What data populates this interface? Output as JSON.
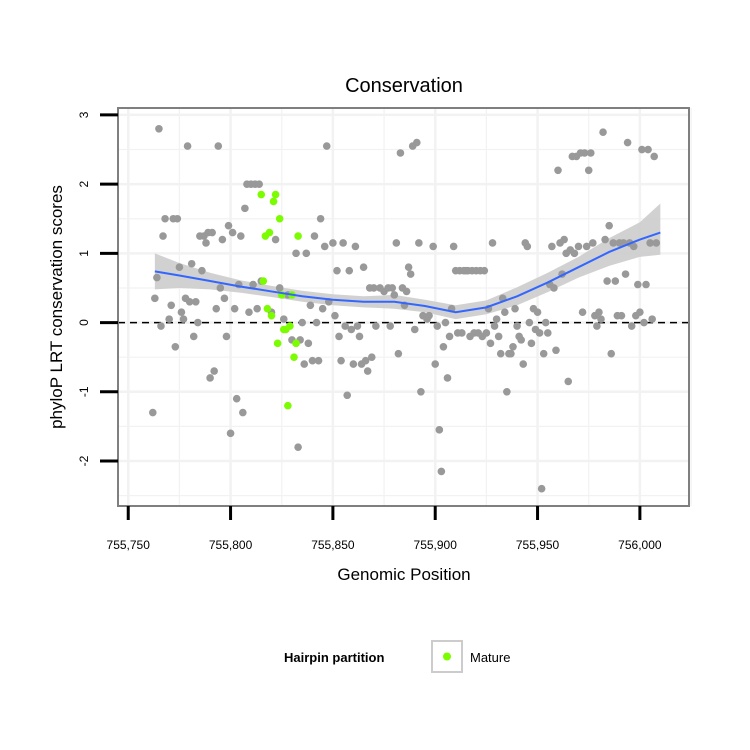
{
  "chart_data": {
    "type": "scatter",
    "title": "Conservation",
    "xlabel": "Genomic Position",
    "ylabel": "phyloP LRT conservation scores",
    "xlim": [
      755745,
      756024
    ],
    "ylim": [
      -2.65,
      3.1
    ],
    "x_ticks": [
      755750,
      755800,
      755850,
      755900,
      755950,
      756000
    ],
    "x_tick_labels": [
      "755,750",
      "755,800",
      "755,850",
      "755,900",
      "755,950",
      "756,000"
    ],
    "y_ticks": [
      -2,
      -1,
      0,
      1,
      2,
      3
    ],
    "y_tick_labels": [
      "-2",
      "-1",
      "0",
      "1",
      "2",
      "3"
    ],
    "reference_line_y": 0,
    "grid": true,
    "legend": {
      "title": "Hairpin partition",
      "placement": "bottom",
      "entries": [
        "Mature"
      ]
    },
    "colors": {
      "other": "#999999",
      "mature": "#7cfc00",
      "smooth": "#3366ff",
      "ribbon": "#cccccc",
      "panel_border": "#7f7f7f",
      "grid": "#f2f2f2"
    },
    "series": [
      {
        "name": "",
        "color": "#999999",
        "points": [
          [
            755762,
            -1.3
          ],
          [
            755763,
            0.35
          ],
          [
            755764,
            0.65
          ],
          [
            755765,
            2.8
          ],
          [
            755766,
            -0.05
          ],
          [
            755767,
            1.25
          ],
          [
            755768,
            1.5
          ],
          [
            755770,
            0.05
          ],
          [
            755771,
            0.25
          ],
          [
            755772,
            1.5
          ],
          [
            755773,
            -0.35
          ],
          [
            755774,
            1.5
          ],
          [
            755775,
            0.8
          ],
          [
            755776,
            0.15
          ],
          [
            755777,
            0.05
          ],
          [
            755778,
            0.35
          ],
          [
            755779,
            2.55
          ],
          [
            755780,
            0.3
          ],
          [
            755781,
            0.85
          ],
          [
            755782,
            -0.2
          ],
          [
            755783,
            0.3
          ],
          [
            755784,
            0.0
          ],
          [
            755785,
            1.25
          ],
          [
            755786,
            0.75
          ],
          [
            755787,
            1.25
          ],
          [
            755788,
            1.15
          ],
          [
            755789,
            1.3
          ],
          [
            755790,
            -0.8
          ],
          [
            755791,
            1.3
          ],
          [
            755792,
            -0.7
          ],
          [
            755793,
            0.2
          ],
          [
            755794,
            2.55
          ],
          [
            755795,
            0.5
          ],
          [
            755796,
            1.2
          ],
          [
            755797,
            0.35
          ],
          [
            755798,
            -0.2
          ],
          [
            755799,
            1.4
          ],
          [
            755800,
            -1.6
          ],
          [
            755801,
            1.3
          ],
          [
            755802,
            0.2
          ],
          [
            755803,
            -1.1
          ],
          [
            755804,
            0.55
          ],
          [
            755805,
            1.25
          ],
          [
            755806,
            -1.3
          ],
          [
            755807,
            1.65
          ],
          [
            755808,
            2.0
          ],
          [
            755809,
            0.15
          ],
          [
            755810,
            2.0
          ],
          [
            755811,
            0.55
          ],
          [
            755812,
            2.0
          ],
          [
            755813,
            0.2
          ],
          [
            755814,
            2.0
          ],
          [
            755815,
            0.6
          ],
          [
            755820,
            0.15
          ],
          [
            755822,
            1.2
          ],
          [
            755824,
            0.5
          ],
          [
            755826,
            0.05
          ],
          [
            755828,
            0.4
          ],
          [
            755830,
            -0.25
          ],
          [
            755832,
            1.0
          ],
          [
            755833,
            -1.8
          ],
          [
            755834,
            -0.25
          ],
          [
            755835,
            0.0
          ],
          [
            755836,
            -0.6
          ],
          [
            755837,
            1.0
          ],
          [
            755838,
            -0.3
          ],
          [
            755839,
            0.25
          ],
          [
            755840,
            -0.55
          ],
          [
            755841,
            1.25
          ],
          [
            755842,
            0.0
          ],
          [
            755843,
            -0.55
          ],
          [
            755844,
            1.5
          ],
          [
            755845,
            0.2
          ],
          [
            755846,
            1.1
          ],
          [
            755847,
            2.55
          ],
          [
            755848,
            0.3
          ],
          [
            755850,
            1.15
          ],
          [
            755851,
            0.1
          ],
          [
            755852,
            0.75
          ],
          [
            755853,
            -0.2
          ],
          [
            755854,
            -0.55
          ],
          [
            755855,
            1.15
          ],
          [
            755856,
            -0.05
          ],
          [
            755857,
            -1.05
          ],
          [
            755858,
            0.75
          ],
          [
            755859,
            -0.1
          ],
          [
            755860,
            -0.6
          ],
          [
            755861,
            1.1
          ],
          [
            755862,
            -0.05
          ],
          [
            755863,
            -0.2
          ],
          [
            755864,
            -0.6
          ],
          [
            755865,
            0.8
          ],
          [
            755866,
            -0.55
          ],
          [
            755867,
            -0.7
          ],
          [
            755868,
            0.5
          ],
          [
            755869,
            -0.5
          ],
          [
            755870,
            0.5
          ],
          [
            755871,
            -0.05
          ],
          [
            755873,
            0.5
          ],
          [
            755875,
            0.45
          ],
          [
            755877,
            0.5
          ],
          [
            755878,
            -0.05
          ],
          [
            755879,
            0.5
          ],
          [
            755880,
            0.4
          ],
          [
            755881,
            1.15
          ],
          [
            755882,
            -0.45
          ],
          [
            755883,
            2.45
          ],
          [
            755884,
            0.5
          ],
          [
            755885,
            0.25
          ],
          [
            755886,
            0.45
          ],
          [
            755887,
            0.8
          ],
          [
            755888,
            0.7
          ],
          [
            755889,
            2.55
          ],
          [
            755890,
            -0.1
          ],
          [
            755891,
            2.6
          ],
          [
            755892,
            1.15
          ],
          [
            755893,
            -1.0
          ],
          [
            755894,
            0.1
          ],
          [
            755896,
            0.05
          ],
          [
            755897,
            0.1
          ],
          [
            755899,
            1.1
          ],
          [
            755900,
            -0.6
          ],
          [
            755901,
            -0.05
          ],
          [
            755902,
            -1.55
          ],
          [
            755903,
            -2.15
          ],
          [
            755904,
            -0.35
          ],
          [
            755905,
            0.0
          ],
          [
            755906,
            -0.8
          ],
          [
            755907,
            -0.2
          ],
          [
            755908,
            0.2
          ],
          [
            755909,
            1.1
          ],
          [
            755910,
            0.75
          ],
          [
            755911,
            -0.15
          ],
          [
            755912,
            0.75
          ],
          [
            755913,
            -0.15
          ],
          [
            755914,
            0.75
          ],
          [
            755915,
            0.75
          ],
          [
            755916,
            0.75
          ],
          [
            755917,
            -0.2
          ],
          [
            755918,
            0.75
          ],
          [
            755919,
            -0.15
          ],
          [
            755920,
            0.75
          ],
          [
            755921,
            -0.15
          ],
          [
            755922,
            0.75
          ],
          [
            755923,
            -0.2
          ],
          [
            755924,
            0.75
          ],
          [
            755925,
            -0.15
          ],
          [
            755926,
            0.2
          ],
          [
            755927,
            -0.3
          ],
          [
            755928,
            1.15
          ],
          [
            755929,
            -0.05
          ],
          [
            755930,
            0.05
          ],
          [
            755931,
            -0.2
          ],
          [
            755932,
            -0.45
          ],
          [
            755933,
            0.35
          ],
          [
            755934,
            0.15
          ],
          [
            755935,
            -1.0
          ],
          [
            755936,
            -0.45
          ],
          [
            755937,
            -0.45
          ],
          [
            755938,
            -0.35
          ],
          [
            755939,
            0.2
          ],
          [
            755940,
            -0.05
          ],
          [
            755941,
            -0.2
          ],
          [
            755942,
            -0.25
          ],
          [
            755943,
            -0.6
          ],
          [
            755944,
            1.15
          ],
          [
            755945,
            1.1
          ],
          [
            755946,
            0.0
          ],
          [
            755947,
            -0.3
          ],
          [
            755948,
            0.2
          ],
          [
            755949,
            -0.1
          ],
          [
            755950,
            0.15
          ],
          [
            755951,
            -0.15
          ],
          [
            755952,
            -2.4
          ],
          [
            755953,
            -0.45
          ],
          [
            755954,
            0.0
          ],
          [
            755955,
            -0.15
          ],
          [
            755956,
            0.55
          ],
          [
            755957,
            1.1
          ],
          [
            755958,
            0.5
          ],
          [
            755959,
            -0.4
          ],
          [
            755960,
            2.2
          ],
          [
            755961,
            1.15
          ],
          [
            755962,
            0.7
          ],
          [
            755963,
            1.2
          ],
          [
            755964,
            1.0
          ],
          [
            755965,
            -0.85
          ],
          [
            755966,
            1.05
          ],
          [
            755967,
            2.4
          ],
          [
            755968,
            1.0
          ],
          [
            755969,
            2.4
          ],
          [
            755970,
            1.1
          ],
          [
            755971,
            2.45
          ],
          [
            755972,
            0.15
          ],
          [
            755973,
            2.45
          ],
          [
            755974,
            1.1
          ],
          [
            755975,
            2.2
          ],
          [
            755976,
            2.45
          ],
          [
            755977,
            1.15
          ],
          [
            755978,
            0.1
          ],
          [
            755979,
            -0.05
          ],
          [
            755980,
            0.15
          ],
          [
            755981,
            0.05
          ],
          [
            755982,
            2.75
          ],
          [
            755983,
            1.2
          ],
          [
            755984,
            0.6
          ],
          [
            755985,
            1.4
          ],
          [
            755986,
            -0.45
          ],
          [
            755987,
            1.15
          ],
          [
            755988,
            0.6
          ],
          [
            755989,
            0.1
          ],
          [
            755990,
            1.15
          ],
          [
            755991,
            0.1
          ],
          [
            755992,
            1.15
          ],
          [
            755993,
            0.7
          ],
          [
            755994,
            2.6
          ],
          [
            755995,
            1.15
          ],
          [
            755996,
            -0.05
          ],
          [
            755997,
            1.1
          ],
          [
            755998,
            0.1
          ],
          [
            755999,
            0.55
          ],
          [
            756000,
            0.15
          ],
          [
            756001,
            2.5
          ],
          [
            756002,
            0.0
          ],
          [
            756003,
            0.55
          ],
          [
            756004,
            2.5
          ],
          [
            756005,
            1.15
          ],
          [
            756006,
            0.05
          ],
          [
            756007,
            2.4
          ],
          [
            756008,
            1.15
          ]
        ]
      },
      {
        "name": "Mature",
        "color": "#7cfc00",
        "points": [
          [
            755815,
            1.85
          ],
          [
            755816,
            0.6
          ],
          [
            755817,
            1.25
          ],
          [
            755818,
            0.2
          ],
          [
            755819,
            1.3
          ],
          [
            755820,
            0.1
          ],
          [
            755821,
            1.75
          ],
          [
            755822,
            1.85
          ],
          [
            755823,
            -0.3
          ],
          [
            755824,
            1.5
          ],
          [
            755825,
            0.4
          ],
          [
            755826,
            -0.1
          ],
          [
            755827,
            -0.1
          ],
          [
            755828,
            -1.2
          ],
          [
            755829,
            -0.05
          ],
          [
            755830,
            0.4
          ],
          [
            755831,
            -0.5
          ],
          [
            755832,
            -0.3
          ],
          [
            755833,
            1.25
          ]
        ]
      }
    ],
    "smooth_line": {
      "name": "",
      "color": "#3366ff",
      "points": [
        [
          755763,
          0.74
        ],
        [
          755775,
          0.68
        ],
        [
          755790,
          0.6
        ],
        [
          755805,
          0.52
        ],
        [
          755820,
          0.45
        ],
        [
          755835,
          0.38
        ],
        [
          755850,
          0.33
        ],
        [
          755865,
          0.3
        ],
        [
          755880,
          0.3
        ],
        [
          755895,
          0.24
        ],
        [
          755910,
          0.15
        ],
        [
          755925,
          0.22
        ],
        [
          755940,
          0.38
        ],
        [
          755955,
          0.58
        ],
        [
          755970,
          0.8
        ],
        [
          755985,
          1.02
        ],
        [
          756000,
          1.2
        ],
        [
          756010,
          1.3
        ]
      ],
      "ribbon_lower": [
        0.48,
        0.5,
        0.48,
        0.43,
        0.37,
        0.3,
        0.25,
        0.22,
        0.2,
        0.15,
        0.05,
        0.12,
        0.25,
        0.44,
        0.65,
        0.82,
        0.95,
        0.98
      ],
      "ribbon_upper": [
        1.0,
        0.86,
        0.72,
        0.61,
        0.53,
        0.46,
        0.41,
        0.38,
        0.4,
        0.33,
        0.25,
        0.32,
        0.51,
        0.72,
        0.95,
        1.22,
        1.45,
        1.72
      ]
    }
  }
}
